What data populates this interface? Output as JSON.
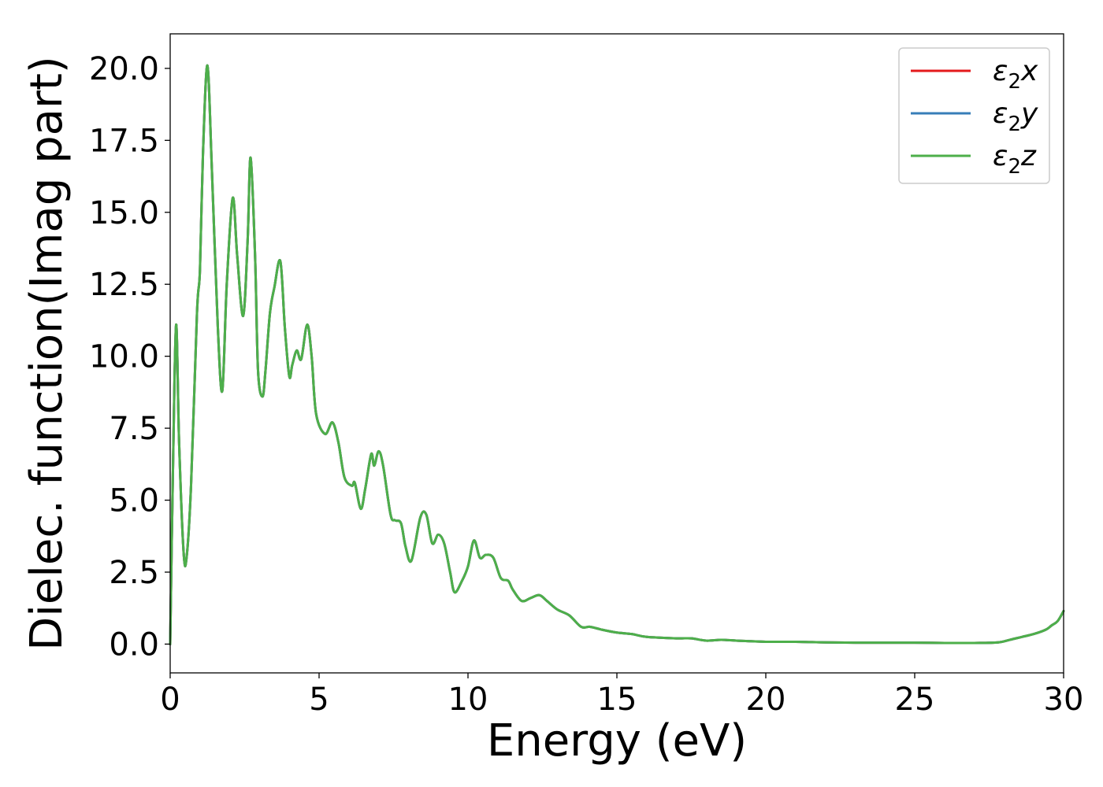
{
  "chart_data": {
    "type": "line",
    "xlabel": "Energy (eV)",
    "ylabel": "Dielec. function(Imag part)",
    "xlim": [
      0,
      30
    ],
    "ylim": [
      -1.0,
      21.2
    ],
    "x_ticks": [
      0,
      5,
      10,
      15,
      20,
      25,
      30
    ],
    "x_tick_labels": [
      "0",
      "5",
      "10",
      "15",
      "20",
      "25",
      "30"
    ],
    "y_ticks": [
      0.0,
      2.5,
      5.0,
      7.5,
      10.0,
      12.5,
      15.0,
      17.5,
      20.0
    ],
    "y_tick_labels": [
      "0.0",
      "2.5",
      "5.0",
      "7.5",
      "10.0",
      "12.5",
      "15.0",
      "17.5",
      "20.0"
    ],
    "grid": false,
    "legend_position": "top-right",
    "legend": [
      {
        "name": "ε",
        "sub": "2",
        "suffix": "x",
        "color": "#e41a1c"
      },
      {
        "name": "ε",
        "sub": "2",
        "suffix": "y",
        "color": "#377eb8"
      },
      {
        "name": "ε",
        "sub": "2",
        "suffix": "z",
        "color": "#4daf4a"
      }
    ],
    "x": [
      0.0,
      0.1,
      0.2,
      0.3,
      0.45,
      0.55,
      0.7,
      0.9,
      1.0,
      1.1,
      1.25,
      1.4,
      1.6,
      1.75,
      1.9,
      2.1,
      2.25,
      2.45,
      2.6,
      2.7,
      2.85,
      2.95,
      3.1,
      3.2,
      3.35,
      3.5,
      3.7,
      3.85,
      4.0,
      4.1,
      4.25,
      4.4,
      4.6,
      4.75,
      4.9,
      5.2,
      5.45,
      5.65,
      5.85,
      6.1,
      6.2,
      6.4,
      6.55,
      6.75,
      6.85,
      7.0,
      7.15,
      7.4,
      7.55,
      7.75,
      7.9,
      8.1,
      8.4,
      8.6,
      8.8,
      9.0,
      9.2,
      9.4,
      9.55,
      9.8,
      10.0,
      10.2,
      10.4,
      10.6,
      10.85,
      11.1,
      11.35,
      11.5,
      11.8,
      12.1,
      12.4,
      12.65,
      13.0,
      13.4,
      13.8,
      14.1,
      14.5,
      15.0,
      15.5,
      16.0,
      17.0,
      17.5,
      18.0,
      18.5,
      19.0,
      19.5,
      20.0,
      21.0,
      22.0,
      23.0,
      24.0,
      25.0,
      26.0,
      27.0,
      27.8,
      28.2,
      28.6,
      29.0,
      29.4,
      29.6,
      29.8,
      30.0
    ],
    "series": [
      {
        "name": "ε2x",
        "color": "#e41a1c",
        "values": [
          0.0,
          6.5,
          11.1,
          7.0,
          3.2,
          3.0,
          5.5,
          11.5,
          13.0,
          17.0,
          20.1,
          16.5,
          11.0,
          8.8,
          12.5,
          15.5,
          13.5,
          11.4,
          14.0,
          16.9,
          13.5,
          9.5,
          8.6,
          9.5,
          11.5,
          12.4,
          13.3,
          11.0,
          9.3,
          9.7,
          10.2,
          9.9,
          11.1,
          10.0,
          8.0,
          7.3,
          7.7,
          7.0,
          5.8,
          5.5,
          5.6,
          4.7,
          5.4,
          6.6,
          6.2,
          6.7,
          6.2,
          4.5,
          4.3,
          4.2,
          3.4,
          2.9,
          4.4,
          4.5,
          3.5,
          3.8,
          3.5,
          2.5,
          1.8,
          2.2,
          2.7,
          3.6,
          3.0,
          3.1,
          3.0,
          2.3,
          2.2,
          1.9,
          1.5,
          1.6,
          1.7,
          1.5,
          1.2,
          1.0,
          0.6,
          0.6,
          0.5,
          0.4,
          0.35,
          0.25,
          0.2,
          0.2,
          0.12,
          0.15,
          0.12,
          0.1,
          0.08,
          0.08,
          0.06,
          0.05,
          0.05,
          0.05,
          0.04,
          0.04,
          0.06,
          0.15,
          0.25,
          0.35,
          0.5,
          0.65,
          0.8,
          1.15
        ]
      },
      {
        "name": "ε2y",
        "color": "#377eb8",
        "values": [
          0.0,
          6.5,
          11.1,
          7.0,
          3.2,
          3.0,
          5.5,
          11.5,
          13.0,
          17.0,
          20.1,
          16.5,
          11.0,
          8.8,
          12.5,
          15.5,
          13.5,
          11.4,
          14.0,
          16.9,
          13.5,
          9.5,
          8.6,
          9.5,
          11.5,
          12.4,
          13.3,
          11.0,
          9.3,
          9.7,
          10.2,
          9.9,
          11.1,
          10.0,
          8.0,
          7.3,
          7.7,
          7.0,
          5.8,
          5.5,
          5.6,
          4.7,
          5.4,
          6.6,
          6.2,
          6.7,
          6.2,
          4.5,
          4.3,
          4.2,
          3.4,
          2.9,
          4.4,
          4.5,
          3.5,
          3.8,
          3.5,
          2.5,
          1.8,
          2.2,
          2.7,
          3.6,
          3.0,
          3.1,
          3.0,
          2.3,
          2.2,
          1.9,
          1.5,
          1.6,
          1.7,
          1.5,
          1.2,
          1.0,
          0.6,
          0.6,
          0.5,
          0.4,
          0.35,
          0.25,
          0.2,
          0.2,
          0.12,
          0.15,
          0.12,
          0.1,
          0.08,
          0.08,
          0.06,
          0.05,
          0.05,
          0.05,
          0.04,
          0.04,
          0.06,
          0.15,
          0.25,
          0.35,
          0.5,
          0.65,
          0.8,
          1.15
        ]
      },
      {
        "name": "ε2z",
        "color": "#4daf4a",
        "values": [
          0.0,
          6.5,
          11.1,
          7.0,
          3.2,
          3.0,
          5.5,
          11.5,
          13.0,
          17.0,
          20.1,
          16.5,
          11.0,
          8.8,
          12.5,
          15.5,
          13.5,
          11.4,
          14.0,
          16.9,
          13.5,
          9.5,
          8.6,
          9.5,
          11.5,
          12.4,
          13.3,
          11.0,
          9.3,
          9.7,
          10.2,
          9.9,
          11.1,
          10.0,
          8.0,
          7.3,
          7.7,
          7.0,
          5.8,
          5.5,
          5.6,
          4.7,
          5.4,
          6.6,
          6.2,
          6.7,
          6.2,
          4.5,
          4.3,
          4.2,
          3.4,
          2.9,
          4.4,
          4.5,
          3.5,
          3.8,
          3.5,
          2.5,
          1.8,
          2.2,
          2.7,
          3.6,
          3.0,
          3.1,
          3.0,
          2.3,
          2.2,
          1.9,
          1.5,
          1.6,
          1.7,
          1.5,
          1.2,
          1.0,
          0.6,
          0.6,
          0.5,
          0.4,
          0.35,
          0.25,
          0.2,
          0.2,
          0.12,
          0.15,
          0.12,
          0.1,
          0.08,
          0.08,
          0.06,
          0.05,
          0.05,
          0.05,
          0.04,
          0.04,
          0.06,
          0.15,
          0.25,
          0.35,
          0.5,
          0.65,
          0.8,
          1.15
        ]
      }
    ]
  }
}
